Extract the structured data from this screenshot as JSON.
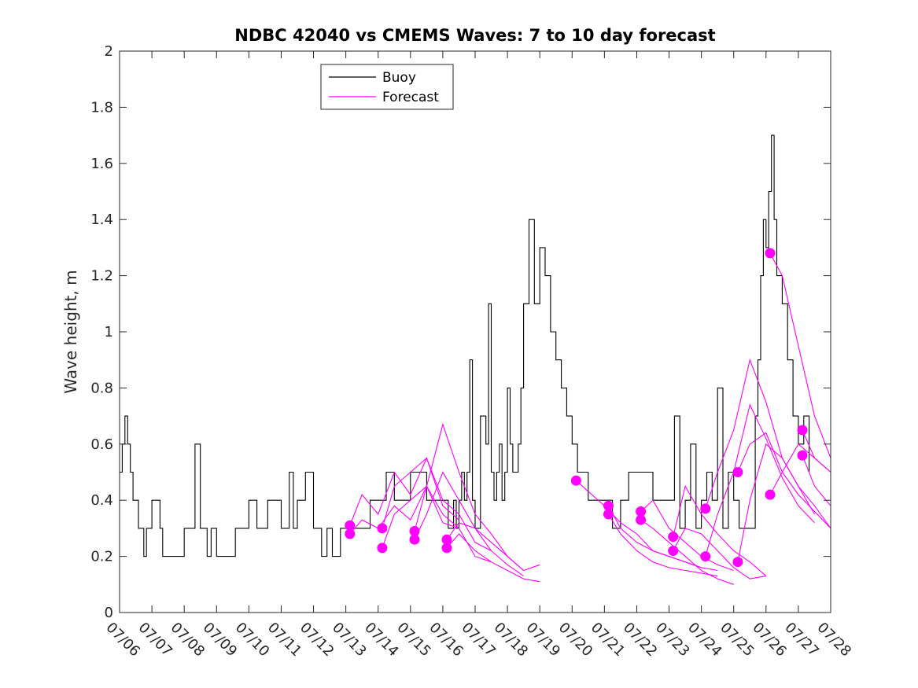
{
  "chart_data": {
    "type": "line",
    "title": "NDBC 42040 vs CMEMS Waves: 7 to 10 day forecast",
    "xlabel": "",
    "ylabel": "Wave height, m",
    "xlim": [
      "07/06",
      "07/28"
    ],
    "ylim": [
      0,
      2
    ],
    "x_tick_labels": [
      "07/06",
      "07/07",
      "07/08",
      "07/09",
      "07/10",
      "07/11",
      "07/12",
      "07/13",
      "07/14",
      "07/15",
      "07/16",
      "07/17",
      "07/18",
      "07/19",
      "07/20",
      "07/21",
      "07/22",
      "07/23",
      "07/24",
      "07/25",
      "07/26",
      "07/27",
      "07/28"
    ],
    "y_ticks": [
      0,
      0.2,
      0.4,
      0.6,
      0.8,
      1,
      1.2,
      1.4,
      1.6,
      1.8,
      2
    ],
    "y_tick_labels": [
      "0",
      "0.2",
      "0.4",
      "0.6",
      "0.8",
      "1",
      "1.2",
      "1.4",
      "1.6",
      "1.8",
      "2"
    ],
    "grid": false,
    "legend_position": "top-left",
    "colors": {
      "buoy": "#000000",
      "forecast": "#ff00ff"
    },
    "series": [
      {
        "name": "Buoy",
        "x": [
          "07/06 00:00",
          "07/06 02:00",
          "07/06 04:00",
          "07/06 06:00",
          "07/06 08:00",
          "07/06 10:00",
          "07/06 12:00",
          "07/06 14:00",
          "07/06 16:00",
          "07/06 18:00",
          "07/06 20:00",
          "07/07 00:00",
          "07/07 04:00",
          "07/07 06:00",
          "07/07 08:00",
          "07/07 12:00",
          "07/07 18:00",
          "07/08 00:00",
          "07/08 08:00",
          "07/08 12:00",
          "07/08 14:00",
          "07/08 17:00",
          "07/08 20:00",
          "07/09 00:00",
          "07/09 08:00",
          "07/09 12:00",
          "07/09 14:00",
          "07/09 20:00",
          "07/10 00:00",
          "07/10 06:00",
          "07/10 12:00",
          "07/10 14:00",
          "07/10 20:00",
          "07/11 00:00",
          "07/11 06:00",
          "07/11 09:00",
          "07/11 12:00",
          "07/11 14:00",
          "07/11 18:00",
          "07/12 00:00",
          "07/12 06:00",
          "07/12 10:00",
          "07/12 14:00",
          "07/12 20:00",
          "07/13 00:00",
          "07/13 06:00",
          "07/13 12:00",
          "07/13 18:00",
          "07/14 00:00",
          "07/14 06:00",
          "07/14 12:00",
          "07/14 18:00",
          "07/15 00:00",
          "07/15 06:00",
          "07/15 12:00",
          "07/15 18:00",
          "07/16 00:00",
          "07/16 04:00",
          "07/16 08:00",
          "07/16 10:00",
          "07/16 12:00",
          "07/16 14:00",
          "07/16 16:00",
          "07/16 18:00",
          "07/16 20:00",
          "07/16 22:00",
          "07/17 00:00",
          "07/17 04:00",
          "07/17 08:00",
          "07/17 10:00",
          "07/17 12:00",
          "07/17 14:00",
          "07/17 16:00",
          "07/17 18:00",
          "07/17 20:00",
          "07/17 22:00",
          "07/18 00:00",
          "07/18 02:00",
          "07/18 04:00",
          "07/18 06:00",
          "07/18 08:00",
          "07/18 10:00",
          "07/18 12:00",
          "07/18 16:00",
          "07/18 20:00",
          "07/19 00:00",
          "07/19 04:00",
          "07/19 08:00",
          "07/19 12:00",
          "07/19 16:00",
          "07/19 20:00",
          "07/20 00:00",
          "07/20 04:00",
          "07/20 08:00",
          "07/20 12:00",
          "07/20 18:00",
          "07/21 00:00",
          "07/21 06:00",
          "07/21 12:00",
          "07/21 18:00",
          "07/22 00:00",
          "07/22 06:00",
          "07/22 12:00",
          "07/22 16:00",
          "07/22 20:00",
          "07/23 00:00",
          "07/23 04:00",
          "07/23 08:00",
          "07/23 12:00",
          "07/23 16:00",
          "07/23 20:00",
          "07/24 00:00",
          "07/24 04:00",
          "07/24 08:00",
          "07/24 12:00",
          "07/24 16:00",
          "07/24 20:00",
          "07/25 00:00",
          "07/25 04:00",
          "07/25 08:00",
          "07/25 12:00",
          "07/25 16:00",
          "07/25 18:00",
          "07/25 20:00",
          "07/25 22:00",
          "07/26 00:00",
          "07/26 02:00",
          "07/26 04:00",
          "07/26 06:00",
          "07/26 08:00",
          "07/26 12:00",
          "07/26 16:00",
          "07/26 20:00",
          "07/27 00:00",
          "07/27 04:00",
          "07/27 08:00"
        ],
        "values": [
          0.5,
          0.6,
          0.7,
          0.6,
          0.5,
          0.4,
          0.4,
          0.3,
          0.3,
          0.2,
          0.3,
          0.4,
          0.4,
          0.3,
          0.2,
          0.2,
          0.2,
          0.3,
          0.6,
          0.3,
          0.3,
          0.2,
          0.3,
          0.2,
          0.2,
          0.2,
          0.3,
          0.3,
          0.4,
          0.3,
          0.3,
          0.4,
          0.4,
          0.3,
          0.5,
          0.3,
          0.4,
          0.4,
          0.5,
          0.3,
          0.2,
          0.3,
          0.2,
          0.3,
          0.3,
          0.3,
          0.3,
          0.4,
          0.4,
          0.5,
          0.4,
          0.4,
          0.5,
          0.5,
          0.4,
          0.4,
          0.4,
          0.3,
          0.4,
          0.3,
          0.4,
          0.5,
          0.4,
          0.5,
          0.9,
          0.4,
          0.3,
          0.7,
          0.6,
          1.1,
          0.5,
          0.4,
          0.5,
          0.6,
          0.4,
          0.5,
          0.8,
          0.6,
          0.5,
          0.5,
          0.6,
          0.8,
          1.1,
          1.4,
          1.1,
          1.3,
          1.2,
          1.0,
          0.9,
          0.8,
          0.7,
          0.6,
          0.5,
          0.5,
          0.4,
          0.4,
          0.4,
          0.3,
          0.4,
          0.5,
          0.5,
          0.5,
          0.4,
          0.4,
          0.4,
          0.4,
          0.7,
          0.3,
          0.4,
          0.6,
          0.3,
          0.4,
          0.5,
          0.4,
          0.8,
          0.3,
          0.5,
          0.4,
          0.3,
          0.3,
          0.3,
          0.7,
          0.9,
          1.2,
          1.4,
          1.3,
          1.5,
          1.7,
          1.4,
          1.2,
          1.1,
          0.9,
          0.7,
          0.6,
          0.7,
          0.5
        ]
      },
      {
        "name": "Forecast",
        "runs": [
          {
            "x": [
              "07/13 03:00",
              "07/13 12:00",
              "07/14 00:00",
              "07/14 12:00",
              "07/15 00:00",
              "07/15 12:00",
              "07/16 00:00",
              "07/16 12:00"
            ],
            "values": [
              0.31,
              0.42,
              0.35,
              0.5,
              0.42,
              0.55,
              0.38,
              0.33
            ]
          },
          {
            "x": [
              "07/13 03:00",
              "07/13 12:00",
              "07/14 00:00",
              "07/14 12:00",
              "07/15 00:00",
              "07/15 12:00",
              "07/16 00:00",
              "07/16 12:00"
            ],
            "values": [
              0.28,
              0.33,
              0.3,
              0.38,
              0.33,
              0.45,
              0.32,
              0.3
            ]
          },
          {
            "x": [
              "07/14 03:00",
              "07/14 12:00",
              "07/15 00:00",
              "07/15 12:00",
              "07/16 00:00",
              "07/16 12:00",
              "07/17 00:00",
              "07/17 12:00"
            ],
            "values": [
              0.3,
              0.45,
              0.5,
              0.55,
              0.4,
              0.35,
              0.25,
              0.22
            ]
          },
          {
            "x": [
              "07/14 03:00",
              "07/14 12:00",
              "07/15 00:00",
              "07/15 12:00",
              "07/16 00:00",
              "07/16 12:00",
              "07/17 00:00",
              "07/17 12:00"
            ],
            "values": [
              0.23,
              0.35,
              0.4,
              0.45,
              0.35,
              0.3,
              0.2,
              0.18
            ]
          },
          {
            "x": [
              "07/15 03:00",
              "07/15 12:00",
              "07/16 00:00",
              "07/16 12:00",
              "07/17 00:00",
              "07/17 12:00",
              "07/18 00:00",
              "07/18 12:00"
            ],
            "values": [
              0.29,
              0.45,
              0.67,
              0.5,
              0.35,
              0.28,
              0.2,
              0.15
            ]
          },
          {
            "x": [
              "07/15 03:00",
              "07/15 12:00",
              "07/16 00:00",
              "07/16 12:00",
              "07/17 00:00",
              "07/17 12:00",
              "07/18 00:00",
              "07/18 12:00"
            ],
            "values": [
              0.26,
              0.35,
              0.5,
              0.4,
              0.3,
              0.22,
              0.17,
              0.13
            ]
          },
          {
            "x": [
              "07/16 03:00",
              "07/16 12:00",
              "07/17 00:00",
              "07/17 12:00",
              "07/18 00:00",
              "07/18 12:00",
              "07/19 00:00"
            ],
            "values": [
              0.26,
              0.32,
              0.3,
              0.25,
              0.2,
              0.15,
              0.17
            ]
          },
          {
            "x": [
              "07/16 03:00",
              "07/16 12:00",
              "07/17 00:00",
              "07/17 12:00",
              "07/18 00:00",
              "07/18 12:00",
              "07/19 00:00"
            ],
            "values": [
              0.23,
              0.28,
              0.22,
              0.18,
              0.15,
              0.12,
              0.11
            ]
          },
          {
            "x": [
              "07/20 03:00",
              "07/21 00:00",
              "07/21 12:00",
              "07/22 00:00",
              "07/22 12:00",
              "07/23 00:00",
              "07/23 12:00",
              "07/24 00:00"
            ],
            "values": [
              0.47,
              0.38,
              0.32,
              0.28,
              0.22,
              0.2,
              0.18,
              0.16
            ]
          },
          {
            "x": [
              "07/21 03:00",
              "07/21 12:00",
              "07/22 00:00",
              "07/22 12:00",
              "07/23 00:00",
              "07/23 12:00",
              "07/24 00:00",
              "07/24 12:00"
            ],
            "values": [
              0.38,
              0.3,
              0.25,
              0.22,
              0.2,
              0.18,
              0.16,
              0.15
            ]
          },
          {
            "x": [
              "07/21 03:00",
              "07/21 12:00",
              "07/22 00:00",
              "07/22 12:00",
              "07/23 00:00",
              "07/23 12:00",
              "07/24 00:00",
              "07/24 12:00"
            ],
            "values": [
              0.35,
              0.28,
              0.22,
              0.18,
              0.16,
              0.15,
              0.14,
              0.13
            ]
          },
          {
            "x": [
              "07/22 03:00",
              "07/22 12:00",
              "07/23 00:00",
              "07/23 12:00",
              "07/24 00:00",
              "07/24 12:00",
              "07/25 00:00"
            ],
            "values": [
              0.36,
              0.4,
              0.3,
              0.25,
              0.2,
              0.17,
              0.15
            ]
          },
          {
            "x": [
              "07/22 03:00",
              "07/22 12:00",
              "07/23 00:00",
              "07/23 12:00",
              "07/24 00:00",
              "07/24 12:00",
              "07/25 00:00"
            ],
            "values": [
              0.33,
              0.3,
              0.25,
              0.2,
              0.15,
              0.12,
              0.1
            ]
          },
          {
            "x": [
              "07/23 03:00",
              "07/23 12:00",
              "07/24 00:00",
              "07/24 12:00",
              "07/25 00:00",
              "07/25 12:00",
              "07/26 00:00"
            ],
            "values": [
              0.27,
              0.45,
              0.35,
              0.28,
              0.22,
              0.18,
              0.13
            ]
          },
          {
            "x": [
              "07/23 03:00",
              "07/23 12:00",
              "07/24 00:00",
              "07/24 12:00",
              "07/25 00:00",
              "07/25 12:00",
              "07/26 00:00"
            ],
            "values": [
              0.22,
              0.3,
              0.28,
              0.22,
              0.16,
              0.12,
              0.13
            ]
          },
          {
            "x": [
              "07/24 03:00",
              "07/24 12:00",
              "07/25 00:00",
              "07/25 12:00",
              "07/26 00:00",
              "07/26 12:00",
              "07/27 00:00",
              "07/27 12:00"
            ],
            "values": [
              0.37,
              0.5,
              0.65,
              0.9,
              0.75,
              0.55,
              0.45,
              0.35
            ]
          },
          {
            "x": [
              "07/24 03:00",
              "07/24 12:00",
              "07/25 00:00",
              "07/25 12:00",
              "07/26 00:00",
              "07/26 12:00",
              "07/27 00:00",
              "07/27 12:00"
            ],
            "values": [
              0.2,
              0.35,
              0.5,
              0.74,
              0.62,
              0.48,
              0.38,
              0.32
            ]
          },
          {
            "x": [
              "07/25 03:00",
              "07/25 12:00",
              "07/26 00:00",
              "07/26 12:00",
              "07/27 00:00",
              "07/27 12:00",
              "07/28 00:00"
            ],
            "values": [
              0.5,
              0.6,
              0.64,
              0.5,
              0.42,
              0.36,
              0.3
            ]
          },
          {
            "x": [
              "07/25 03:00",
              "07/25 12:00",
              "07/26 00:00",
              "07/26 12:00",
              "07/27 00:00",
              "07/27 12:00",
              "07/28 00:00"
            ],
            "values": [
              0.18,
              0.4,
              0.6,
              0.55,
              0.45,
              0.38,
              0.3
            ]
          },
          {
            "x": [
              "07/26 03:00",
              "07/26 12:00",
              "07/27 00:00",
              "07/27 12:00",
              "07/28 00:00"
            ],
            "values": [
              1.28,
              1.2,
              0.95,
              0.7,
              0.55
            ]
          },
          {
            "x": [
              "07/26 03:00",
              "07/26 12:00",
              "07/27 00:00",
              "07/27 12:00",
              "07/28 00:00"
            ],
            "values": [
              0.42,
              0.5,
              0.6,
              0.55,
              0.5
            ]
          },
          {
            "x": [
              "07/27 03:00",
              "07/27 12:00",
              "07/28 00:00"
            ],
            "values": [
              0.65,
              0.55,
              0.5
            ]
          },
          {
            "x": [
              "07/27 03:00",
              "07/27 12:00",
              "07/28 00:00"
            ],
            "values": [
              0.56,
              0.45,
              0.38
            ]
          }
        ],
        "markers": {
          "x": [
            "07/13 03:00",
            "07/13 03:00",
            "07/14 03:00",
            "07/14 03:00",
            "07/15 03:00",
            "07/15 03:00",
            "07/16 03:00",
            "07/16 03:00",
            "07/20 03:00",
            "07/21 03:00",
            "07/21 03:00",
            "07/22 03:00",
            "07/22 03:00",
            "07/23 03:00",
            "07/23 03:00",
            "07/24 03:00",
            "07/24 03:00",
            "07/25 03:00",
            "07/25 03:00",
            "07/26 03:00",
            "07/26 03:00",
            "07/27 03:00",
            "07/27 03:00"
          ],
          "values": [
            0.31,
            0.28,
            0.3,
            0.23,
            0.29,
            0.26,
            0.26,
            0.23,
            0.47,
            0.38,
            0.35,
            0.36,
            0.33,
            0.27,
            0.22,
            0.37,
            0.2,
            0.5,
            0.18,
            1.28,
            0.42,
            0.65,
            0.56
          ]
        }
      }
    ]
  }
}
